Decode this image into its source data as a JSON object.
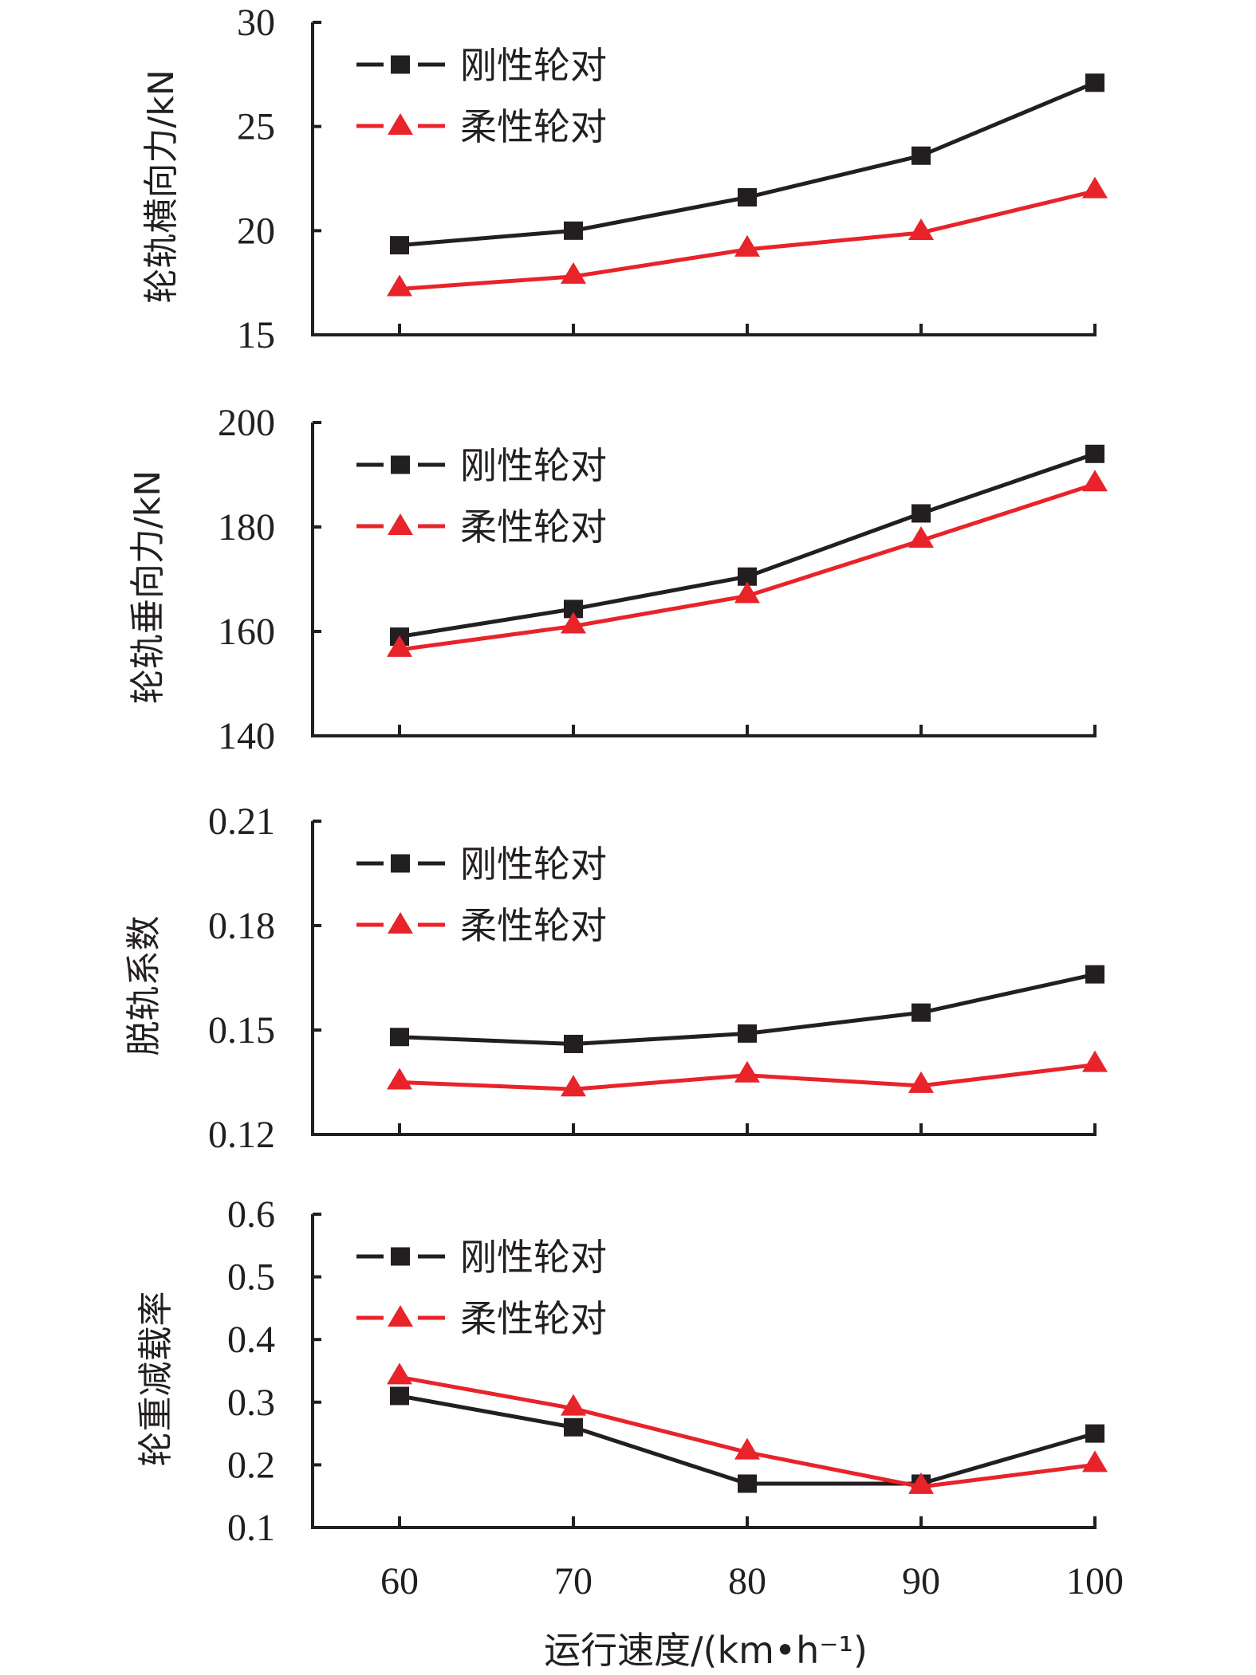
{
  "chart_data": {
    "type": "line",
    "x": [
      60,
      70,
      80,
      90,
      100
    ],
    "xlabel": "运行速度/(km•h⁻¹)",
    "x_tick_labels": [
      "60",
      "70",
      "80",
      "90",
      "100"
    ],
    "legend": {
      "placement": "top-left",
      "entries": [
        "刚性轮对",
        "柔性轮对"
      ]
    },
    "series_styles": [
      {
        "name": "刚性轮对",
        "color": "#231f20",
        "marker": "square"
      },
      {
        "name": "柔性轮对",
        "color": "#e8232a",
        "marker": "triangle"
      }
    ],
    "panels": [
      {
        "ylabel": "轮轨横向力/kN",
        "ylim": [
          15,
          30
        ],
        "y_ticks": [
          15,
          20,
          25,
          30
        ],
        "y_tick_labels": [
          "15",
          "20",
          "25",
          "30"
        ],
        "series": [
          {
            "name": "刚性轮对",
            "values": [
              19.3,
              20.0,
              21.6,
              23.6,
              27.1
            ]
          },
          {
            "name": "柔性轮对",
            "values": [
              17.2,
              17.8,
              19.1,
              19.9,
              21.9
            ]
          }
        ]
      },
      {
        "ylabel": "轮轨垂向力/kN",
        "ylim": [
          140,
          200
        ],
        "y_ticks": [
          140,
          160,
          180,
          200
        ],
        "y_tick_labels": [
          "140",
          "160",
          "180",
          "200"
        ],
        "series": [
          {
            "name": "刚性轮对",
            "values": [
              159.0,
              164.3,
              170.5,
              182.6,
              194.0
            ]
          },
          {
            "name": "柔性轮对",
            "values": [
              156.5,
              161.0,
              166.8,
              177.4,
              188.2
            ]
          }
        ]
      },
      {
        "ylabel": "脱轨系数",
        "ylim": [
          0.12,
          0.21
        ],
        "y_ticks": [
          0.12,
          0.15,
          0.18,
          0.21
        ],
        "y_tick_labels": [
          "0.12",
          "0.15",
          "0.18",
          "0.21"
        ],
        "series": [
          {
            "name": "刚性轮对",
            "values": [
              0.148,
              0.146,
              0.149,
              0.155,
              0.166
            ]
          },
          {
            "name": "柔性轮对",
            "values": [
              0.135,
              0.133,
              0.137,
              0.134,
              0.14
            ]
          }
        ]
      },
      {
        "ylabel": "轮重减载率",
        "ylim": [
          0.1,
          0.6
        ],
        "y_ticks": [
          0.1,
          0.2,
          0.3,
          0.4,
          0.5,
          0.6
        ],
        "y_tick_labels": [
          "0.1",
          "0.2",
          "0.3",
          "0.4",
          "0.5",
          "0.6"
        ],
        "series": [
          {
            "name": "刚性轮对",
            "values": [
              0.31,
              0.26,
              0.17,
              0.17,
              0.25
            ]
          },
          {
            "name": "柔性轮对",
            "values": [
              0.34,
              0.29,
              0.22,
              0.165,
              0.2
            ]
          }
        ]
      }
    ]
  }
}
